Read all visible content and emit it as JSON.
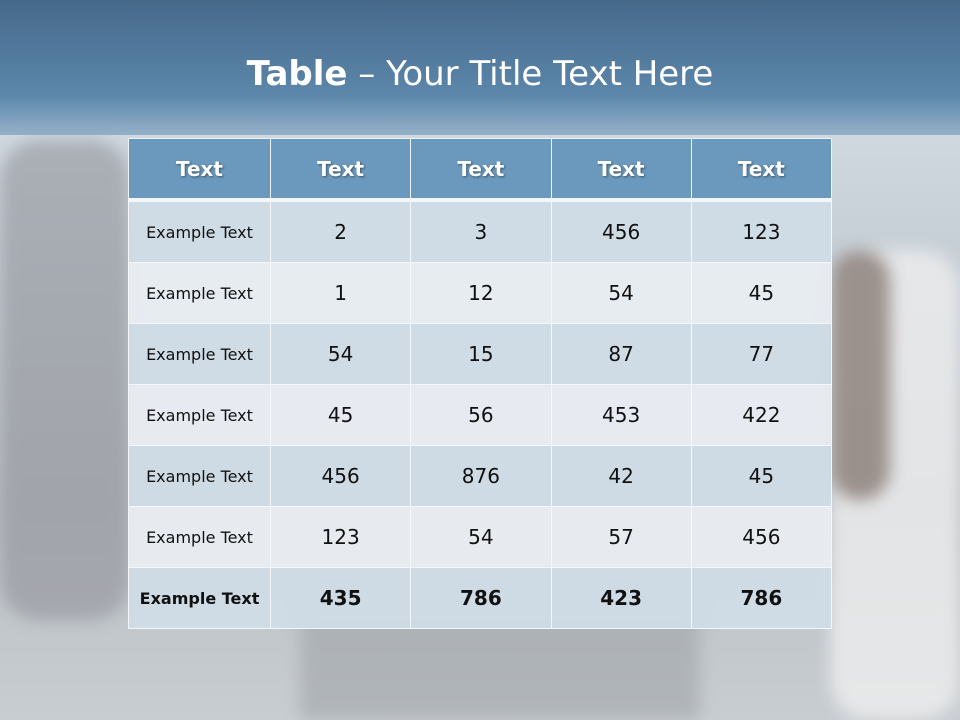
{
  "slide": {
    "title_bold": "Table",
    "title_rest": " – Your Title Text Here"
  },
  "table": {
    "headers": [
      "Text",
      "Text",
      "Text",
      "Text",
      "Text"
    ],
    "rows": [
      [
        "Example Text",
        "2",
        "3",
        "456",
        "123"
      ],
      [
        "Example Text",
        "1",
        "12",
        "54",
        "45"
      ],
      [
        "Example Text",
        "54",
        "15",
        "87",
        "77"
      ],
      [
        "Example Text",
        "45",
        "56",
        "453",
        "422"
      ],
      [
        "Example Text",
        "456",
        "876",
        "42",
        "45"
      ],
      [
        "Example Text",
        "123",
        "54",
        "57",
        "456"
      ],
      [
        "Example Text",
        "435",
        "786",
        "423",
        "786"
      ]
    ]
  },
  "colors": {
    "header": "#6a99bd",
    "title_band": "#5b86aa",
    "row_dark": "#d0dce6",
    "row_light": "#e9edf2"
  }
}
